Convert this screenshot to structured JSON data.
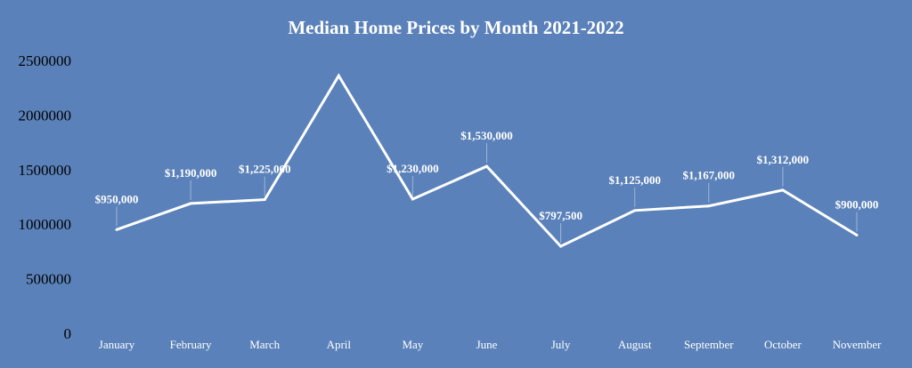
{
  "chart_data": {
    "type": "line",
    "title": "Median Home Prices by Month 2021-2022",
    "xlabel": "",
    "ylabel": "",
    "categories": [
      "January",
      "February",
      "March",
      "April",
      "May",
      "June",
      "July",
      "August",
      "September",
      "October",
      "November"
    ],
    "series": [
      {
        "values": [
          950000,
          1190000,
          1225000,
          2360000,
          1230000,
          1530000,
          797500,
          1125000,
          1167000,
          1312000,
          900000
        ],
        "data_labels": [
          "$950,000",
          "$1,190,000",
          "$1,225,000",
          "",
          "$1,230,000",
          "$1,530,000",
          "$797,500",
          "$1,125,000",
          "$1,167,000",
          "$1,312,000",
          "$900,000"
        ]
      }
    ],
    "ylim": [
      0,
      2500000
    ],
    "yticks": [
      "0",
      "500000",
      "1000000",
      "1500000",
      "2000000",
      "2500000"
    ],
    "grid": false,
    "colors": {
      "background": "#5a81b9",
      "line": "#ffffff",
      "title": "#ffffff",
      "ytick": "#000000",
      "xtick": "#ffffff"
    }
  }
}
